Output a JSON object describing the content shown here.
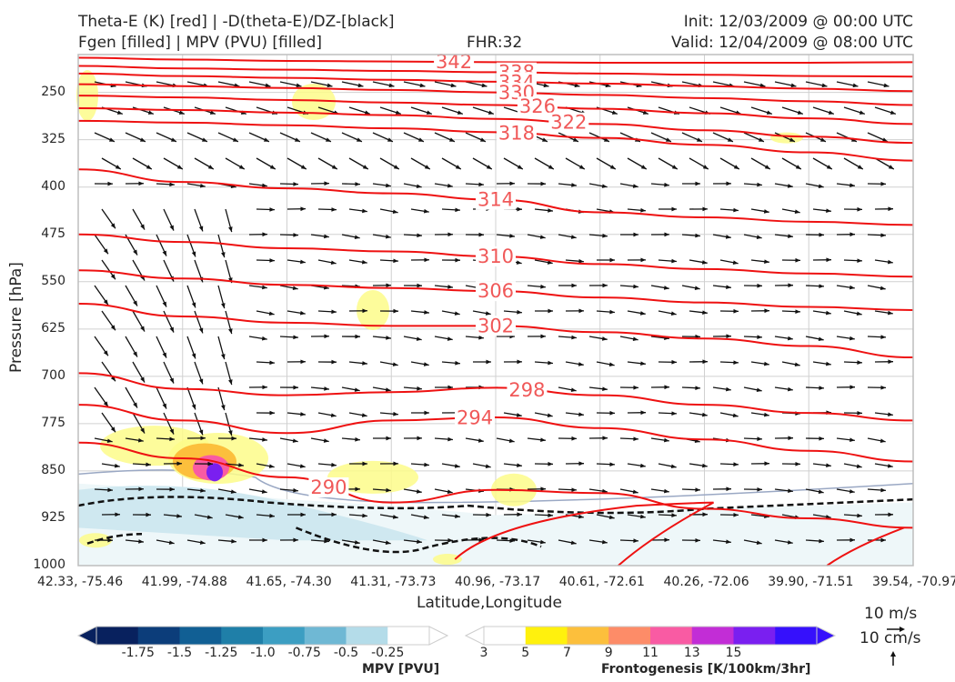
{
  "header": {
    "title_line1": "Theta-E (K) [red] | -D(theta-E)/DZ-[black]",
    "title_line2": "Fgen [filled] | MPV (PVU) [filled]",
    "fhr": "FHR:32",
    "init": "Init: 12/03/2009 @ 00:00 UTC",
    "valid": "Valid: 12/04/2009 @ 08:00 UTC"
  },
  "axes": {
    "ylabel": "Pressure [hPa]",
    "xlabel": "Latitude,Longitude",
    "yticks": [
      "250",
      "325",
      "400",
      "475",
      "550",
      "625",
      "700",
      "775",
      "850",
      "925",
      "1000"
    ],
    "xticks": [
      "42.33, -75.46",
      "41.99, -74.88",
      "41.65, -74.30",
      "41.31, -73.73",
      "40.96, -73.17",
      "40.61, -72.61",
      "40.26, -72.06",
      "39.90, -71.51",
      "39.54, -70.97"
    ]
  },
  "chart_data": {
    "type": "line",
    "x_categories": [
      "42.33, -75.46",
      "41.99, -74.88",
      "41.65, -74.30",
      "41.31, -73.73",
      "40.96, -73.17",
      "40.61, -72.61",
      "40.26, -72.06",
      "39.90, -71.51",
      "39.54, -70.97"
    ],
    "ylim": [
      1000,
      190
    ],
    "y_unit": "hPa",
    "theta_e_contours": [
      {
        "value": 342,
        "label": "342",
        "pressure": [
          195,
          198,
          200,
          201,
          202,
          203,
          203,
          203,
          202
        ]
      },
      {
        "value": 338,
        "label": "338",
        "pressure": [
          208,
          212,
          214,
          216,
          218,
          220,
          222,
          224,
          225
        ]
      },
      {
        "value": 334,
        "label": "334",
        "pressure": [
          220,
          224,
          227,
          230,
          233,
          236,
          240,
          244,
          248
        ]
      },
      {
        "value": 330,
        "label": "330",
        "pressure": [
          237,
          240,
          243,
          246,
          250,
          254,
          259,
          264,
          270
        ]
      },
      {
        "value": 326,
        "label": "326",
        "pressure": [
          255,
          258,
          262,
          266,
          270,
          276,
          283,
          291,
          300
        ]
      },
      {
        "value": 322,
        "label": "322",
        "pressure": [
          275,
          278,
          282,
          286,
          292,
          300,
          310,
          320,
          330
        ]
      },
      {
        "value": 318,
        "label": "318",
        "pressure": [
          295,
          298,
          302,
          307,
          313,
          322,
          333,
          345,
          358
        ]
      },
      {
        "value": 314,
        "label": "314",
        "pressure": [
          372,
          392,
          402,
          410,
          420,
          440,
          448,
          455,
          460
        ]
      },
      {
        "value": 310,
        "label": "310",
        "pressure": [
          475,
          487,
          497,
          502,
          510,
          522,
          530,
          537,
          542
        ]
      },
      {
        "value": 306,
        "label": "306",
        "pressure": [
          532,
          545,
          555,
          560,
          565,
          575,
          583,
          590,
          595
        ]
      },
      {
        "value": 302,
        "label": "302",
        "pressure": [
          585,
          605,
          615,
          620,
          620,
          630,
          640,
          652,
          670
        ]
      },
      {
        "value": 298,
        "label": "298",
        "pressure": [
          695,
          720,
          730,
          725,
          718,
          730,
          745,
          758,
          770
        ]
      },
      {
        "value": 294,
        "label": "294",
        "pressure": [
          745,
          770,
          790,
          770,
          765,
          782,
          800,
          818,
          835
        ]
      },
      {
        "value": 290,
        "label": "290",
        "pressure": [
          805,
          830,
          860,
          900,
          880,
          885,
          910,
          925,
          940
        ]
      }
    ],
    "mpv_colorbar": {
      "label": "MPV [PVU]",
      "ticks": [
        "-1.75",
        "-1.5",
        "-1.25",
        "-1.0",
        "-0.75",
        "-0.5",
        "-0.25"
      ],
      "colors": [
        "#08215e",
        "#0c3d7a",
        "#115f94",
        "#1f7fa8",
        "#3c9ec2",
        "#6fb8d4",
        "#b4dce9",
        "#ffffff"
      ]
    },
    "fgen_colorbar": {
      "label": "Frontogenesis [K/100km/3hr]",
      "ticks": [
        "3",
        "5",
        "7",
        "9",
        "11",
        "13",
        "15"
      ],
      "colors": [
        "#ffffff",
        "#fff10d",
        "#fcbf3c",
        "#fd8c68",
        "#f95ba3",
        "#c22dd6",
        "#7a1ff0",
        "#3610fc"
      ]
    },
    "wind_reference": {
      "horizontal": "10 m/s",
      "vertical": "10 cm/s"
    }
  }
}
